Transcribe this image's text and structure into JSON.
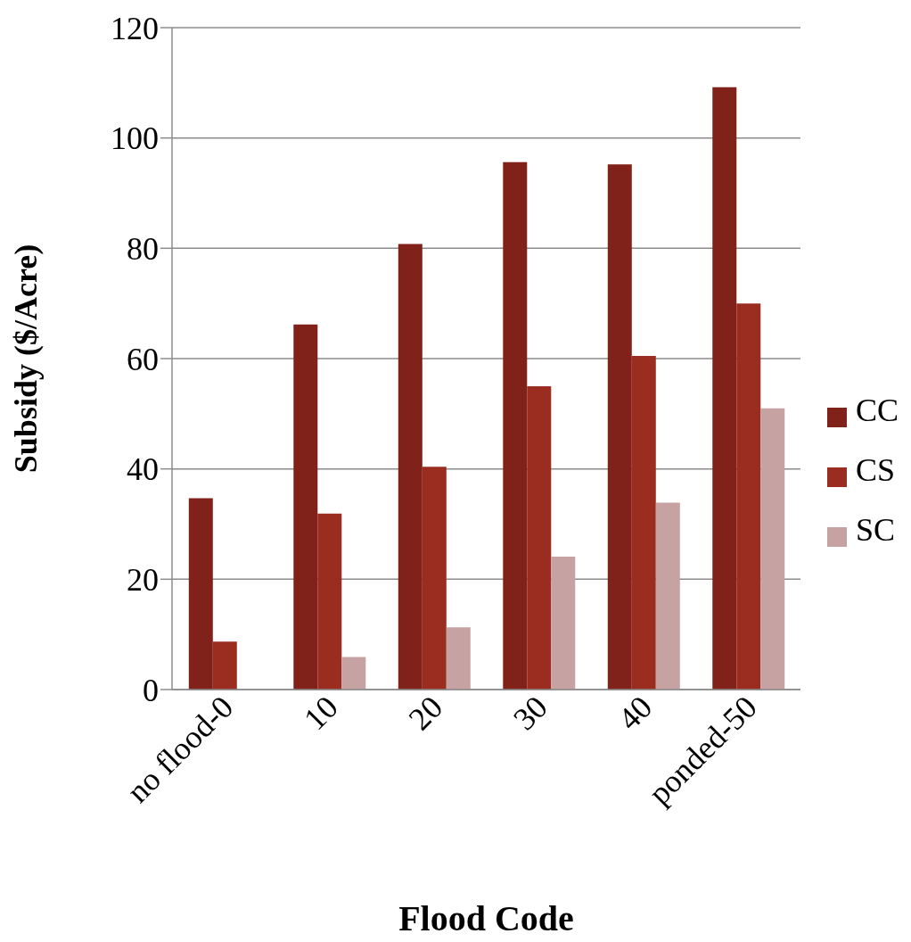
{
  "chart_data": {
    "type": "bar",
    "xlabel": "Flood Code",
    "ylabel": "Subsidy ($/Acre)",
    "categories": [
      "no flood-0",
      "10",
      "20",
      "30",
      "40",
      "ponded-50"
    ],
    "series": [
      {
        "name": "CC",
        "color": "#80221a",
        "values": [
          34.7,
          66.2,
          80.8,
          95.6,
          95.2,
          109.2
        ]
      },
      {
        "name": "CS",
        "color": "#9b2d20",
        "values": [
          8.7,
          31.9,
          40.4,
          55.0,
          60.5,
          70.0
        ]
      },
      {
        "name": "SC",
        "color": "#c6a2a2",
        "values": [
          null,
          5.9,
          11.3,
          24.1,
          33.9,
          51.0
        ]
      }
    ],
    "ylim": [
      0,
      120
    ],
    "yticks": [
      0,
      20,
      40,
      60,
      80,
      100,
      120
    ],
    "grid": "y",
    "legend": "right"
  }
}
